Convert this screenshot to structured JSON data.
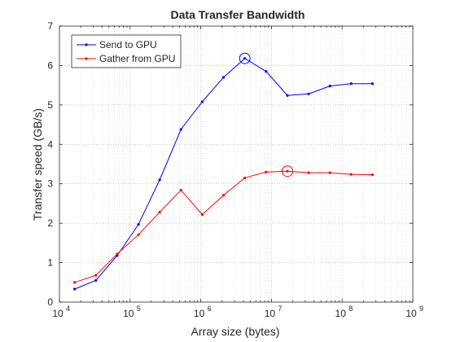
{
  "chart_data": {
    "type": "line",
    "title": "Data Transfer Bandwidth",
    "xlabel": "Array size (bytes)",
    "ylabel": "Transfer speed (GB/s)",
    "x_scale": "log",
    "xlim": [
      10000,
      1000000000
    ],
    "ylim": [
      0,
      7
    ],
    "y_ticks": [
      0,
      1,
      2,
      3,
      4,
      5,
      6,
      7
    ],
    "x_ticks": [
      {
        "value": 10000,
        "base": "10",
        "exp": "4"
      },
      {
        "value": 100000,
        "base": "10",
        "exp": "5"
      },
      {
        "value": 1000000,
        "base": "10",
        "exp": "6"
      },
      {
        "value": 10000000,
        "base": "10",
        "exp": "7"
      },
      {
        "value": 100000000,
        "base": "10",
        "exp": "8"
      },
      {
        "value": 1000000000,
        "base": "10",
        "exp": "9"
      }
    ],
    "grid": true,
    "legend_position": "top-left",
    "series": [
      {
        "name": "Send to GPU",
        "color": "#0000ff",
        "x": [
          16384,
          32768,
          65536,
          131072,
          262144,
          524288,
          1048576,
          2097152,
          4194304,
          8388608,
          16777216,
          33554432,
          67108864,
          134217728,
          268435456
        ],
        "values": [
          0.33,
          0.55,
          1.18,
          1.97,
          3.1,
          4.38,
          5.08,
          5.7,
          6.18,
          5.85,
          5.24,
          5.28,
          5.48,
          5.54,
          5.54
        ],
        "peak_index": 8
      },
      {
        "name": "Gather from GPU",
        "color": "#ff0000",
        "x": [
          16384,
          32768,
          65536,
          131072,
          262144,
          524288,
          1048576,
          2097152,
          4194304,
          8388608,
          16777216,
          33554432,
          67108864,
          134217728,
          268435456
        ],
        "values": [
          0.5,
          0.68,
          1.22,
          1.71,
          2.28,
          2.84,
          2.22,
          2.71,
          3.15,
          3.3,
          3.32,
          3.28,
          3.28,
          3.24,
          3.23
        ],
        "peak_index": 10
      }
    ]
  }
}
